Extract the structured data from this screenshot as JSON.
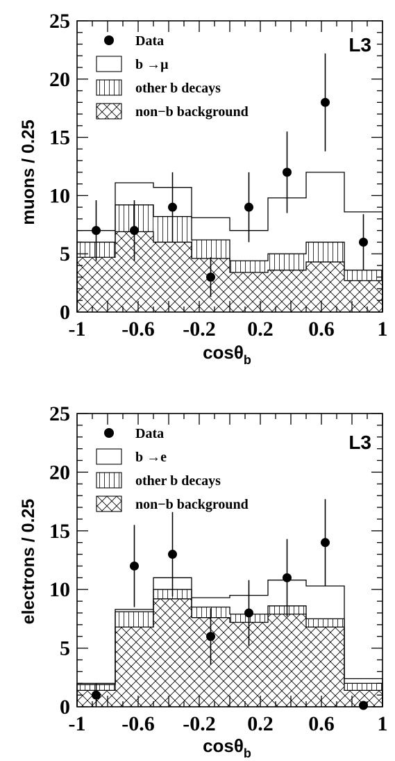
{
  "chart_data": [
    {
      "type": "histogram",
      "panel": "muons",
      "ylabel": "muons / 0.25",
      "xlabel": "cosθ",
      "xlabel_sub": "b",
      "experiment_label": "L3",
      "xlim": [
        -1,
        1
      ],
      "ylim": [
        0,
        25
      ],
      "x_ticks": [
        "-1",
        "-0.6",
        "-0.2",
        "0.2",
        "0.6",
        "1"
      ],
      "y_ticks": [
        "0",
        "5",
        "10",
        "15",
        "20",
        "25"
      ],
      "bin_edges": [
        -1,
        -0.75,
        -0.5,
        -0.25,
        0,
        0.25,
        0.5,
        0.75,
        1
      ],
      "legend": [
        {
          "label": "Data",
          "style": "marker"
        },
        {
          "label": "b →μ",
          "style": "open"
        },
        {
          "label": "other b decays",
          "style": "vertical-hatch"
        },
        {
          "label": "non−b background",
          "style": "cross-hatch"
        }
      ],
      "stack": {
        "non_b_background": [
          4.7,
          6.9,
          6.0,
          4.6,
          3.4,
          3.6,
          4.3,
          2.7
        ],
        "plus_other_b_decays": [
          6.0,
          9.2,
          8.2,
          6.2,
          4.4,
          5.0,
          6.0,
          3.6
        ],
        "total_with_b_to_lepton": [
          7.0,
          11.1,
          10.7,
          8.1,
          7.0,
          9.8,
          12.0,
          8.6
        ]
      },
      "data": {
        "x": [
          -0.875,
          -0.625,
          -0.375,
          -0.125,
          0.125,
          0.375,
          0.625,
          0.875
        ],
        "y": [
          7,
          7,
          9,
          3,
          9,
          12,
          18,
          6
        ],
        "err": [
          2.6,
          2.6,
          3.0,
          1.7,
          3.0,
          3.5,
          4.2,
          2.4
        ]
      }
    },
    {
      "type": "histogram",
      "panel": "electrons",
      "ylabel": "electrons / 0.25",
      "xlabel": "cosθ",
      "xlabel_sub": "b",
      "experiment_label": "L3",
      "xlim": [
        -1,
        1
      ],
      "ylim": [
        0,
        25
      ],
      "x_ticks": [
        "-1",
        "-0.6",
        "-0.2",
        "0.2",
        "0.6",
        "1"
      ],
      "y_ticks": [
        "0",
        "5",
        "10",
        "15",
        "20",
        "25"
      ],
      "bin_edges": [
        -1,
        -0.75,
        -0.5,
        -0.25,
        0,
        0.25,
        0.5,
        0.75,
        1
      ],
      "legend": [
        {
          "label": "Data",
          "style": "marker"
        },
        {
          "label": "b →e",
          "style": "open"
        },
        {
          "label": "other b decays",
          "style": "vertical-hatch"
        },
        {
          "label": "non−b background",
          "style": "cross-hatch"
        }
      ],
      "stack": {
        "non_b_background": [
          1.4,
          6.8,
          9.2,
          7.6,
          7.2,
          7.9,
          6.8,
          1.4
        ],
        "plus_other_b_decays": [
          1.9,
          8.1,
          10.0,
          8.5,
          7.9,
          8.6,
          7.5,
          2.0
        ],
        "total_with_b_to_lepton": [
          2.0,
          8.3,
          11.0,
          9.3,
          9.5,
          10.8,
          10.3,
          2.4
        ]
      },
      "data": {
        "x": [
          -0.875,
          -0.625,
          -0.375,
          -0.125,
          0.125,
          0.375,
          0.625,
          0.875
        ],
        "y": [
          1,
          12,
          13,
          6,
          8,
          11,
          14,
          0
        ],
        "err": [
          1.0,
          3.5,
          3.6,
          2.4,
          2.8,
          3.3,
          3.7,
          0
        ]
      }
    }
  ]
}
